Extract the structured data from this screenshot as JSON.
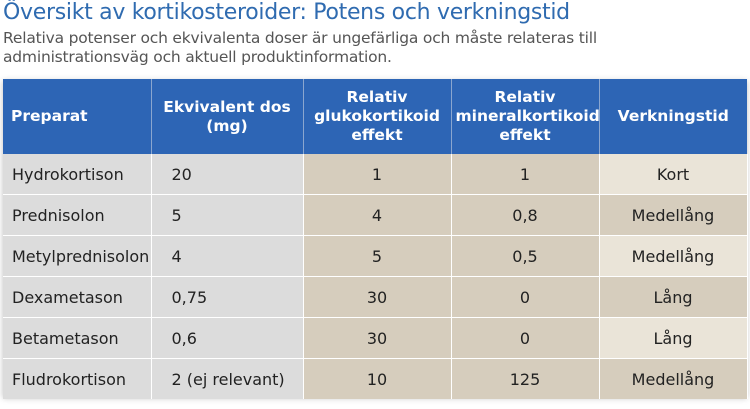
{
  "header": {
    "title": "Översikt av kortikosteroider: Potens och verkningstid",
    "subtitle": "Relativa potenser och ekvivalenta doser är ungefärliga och måste relateras till administrationsväg och aktuell produktinformation."
  },
  "table": {
    "columns": [
      "Preparat",
      "Ekvivalent dos (mg)",
      "Relativ glukokortikoid effekt",
      "Relativ mineralkortikoid effekt",
      "Verkningstid"
    ],
    "rows": [
      [
        "Hydrokortison",
        "20",
        "1",
        "1",
        "Kort"
      ],
      [
        "Prednisolon",
        "5",
        "4",
        "0,8",
        "Medellång"
      ],
      [
        "Metylprednisolon",
        "4",
        "5",
        "0,5",
        "Medellång"
      ],
      [
        "Dexametason",
        "0,75",
        "30",
        "0",
        "Lång"
      ],
      [
        "Betametason",
        "0,6",
        "30",
        "0",
        "Lång"
      ],
      [
        "Fludrokortison",
        "2 (ej relevant)",
        "10",
        "125",
        "Medellång"
      ]
    ]
  },
  "colors": {
    "header_bg": "#2d65b5",
    "title": "#2f6bb0",
    "cell_grey": "#dcdcdc",
    "cell_tan": "#d6cdbd",
    "cell_light_tan": "#eae4d8"
  }
}
